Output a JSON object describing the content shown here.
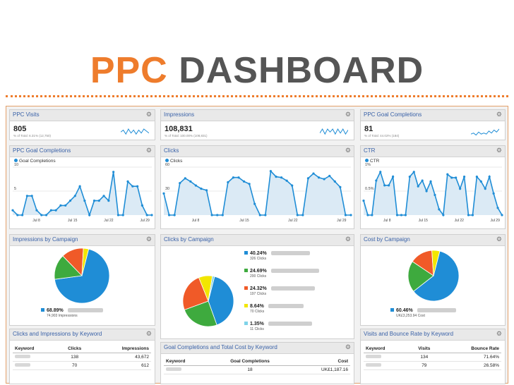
{
  "title": {
    "part1": "PPC",
    "part2": "DASHBOARD"
  },
  "colors": {
    "accent": "#ee7c2c",
    "line": "#1f8dd6",
    "area": "#dbeaf5",
    "title_gray": "#555555"
  },
  "widgets": {
    "ppc_visits": {
      "title": "PPC Visits",
      "value": "805",
      "sub": "% of Total: 6.31% (12,750)",
      "spark": [
        4,
        6,
        2,
        7,
        3,
        6,
        2,
        6,
        3,
        7,
        5,
        3
      ]
    },
    "impressions": {
      "title": "Impressions",
      "value": "108,831",
      "sub": "% of Total: 100.00% (108,831)",
      "spark": [
        3,
        7,
        2,
        7,
        4,
        7,
        2,
        7,
        3,
        7,
        2,
        6
      ]
    },
    "ppc_goal_completions": {
      "title": "PPC Goal Completions",
      "value": "81",
      "sub": "% of Total: 44.02% (184)",
      "spark": [
        2,
        3,
        1,
        4,
        2,
        3,
        2,
        5,
        3,
        6,
        4,
        7
      ]
    }
  },
  "chart_data": [
    {
      "type": "area",
      "title": "PPC Goal Completions",
      "legend": "Goal Completions",
      "yticks": [
        "10",
        "5"
      ],
      "ylim": [
        0,
        10
      ],
      "xticks": [
        "Jul 8",
        "Jul 15",
        "Jul 22",
        "Jul 29"
      ],
      "values": [
        1,
        0,
        0,
        4,
        4,
        1,
        0,
        0,
        1,
        1,
        2,
        2,
        3,
        4,
        6,
        3,
        0,
        3,
        3,
        4,
        3,
        9,
        0,
        0,
        7,
        6,
        6,
        2,
        0,
        0
      ]
    },
    {
      "type": "area",
      "title": "Clicks",
      "legend": "Clicks",
      "yticks": [
        "60",
        "30"
      ],
      "ylim": [
        0,
        60
      ],
      "xticks": [
        "Jul 8",
        "Jul 15",
        "Jul 22",
        "Jul 29"
      ],
      "values": [
        27,
        0,
        0,
        40,
        46,
        42,
        37,
        33,
        31,
        0,
        0,
        0,
        41,
        47,
        47,
        42,
        39,
        14,
        0,
        0,
        55,
        48,
        47,
        43,
        37,
        0,
        0,
        46,
        52,
        47,
        45,
        49,
        42,
        35,
        0,
        0
      ]
    },
    {
      "type": "area",
      "title": "CTR",
      "legend": "CTR",
      "yticks": [
        "1%",
        "0.5%"
      ],
      "ylim": [
        0,
        1
      ],
      "xticks": [
        "Jul 8",
        "Jul 15",
        "Jul 22",
        "Jul 29"
      ],
      "values": [
        0.3,
        0,
        0,
        0.72,
        0.9,
        0.62,
        0.62,
        0.8,
        0,
        0,
        0,
        0.8,
        0.9,
        0.6,
        0.72,
        0.5,
        0.7,
        0.42,
        0.12,
        0,
        0.85,
        0.78,
        0.78,
        0.55,
        0.8,
        0,
        0,
        0.8,
        0.7,
        0.55,
        0.8,
        0.45,
        0.15,
        0
      ]
    },
    {
      "type": "pie",
      "title": "Impressions by Campaign",
      "slices": [
        {
          "pct": 68.89,
          "color": "#1f8dd6"
        },
        {
          "pct": 14.9,
          "color": "#3eaa3e"
        },
        {
          "pct": 13.1,
          "color": "#f05a28"
        },
        {
          "pct": 3.11,
          "color": "#f2e600"
        }
      ],
      "legend": [
        {
          "label": "68.89%",
          "sub": "74,903 Impressions",
          "color": "#1f8dd6"
        }
      ]
    },
    {
      "type": "pie",
      "title": "Clicks by Campaign",
      "slices": [
        {
          "pct": 40.24,
          "color": "#1f8dd6"
        },
        {
          "pct": 24.69,
          "color": "#3eaa3e"
        },
        {
          "pct": 24.32,
          "color": "#f05a28"
        },
        {
          "pct": 8.64,
          "color": "#f2e600"
        },
        {
          "pct": 1.35,
          "color": "#7fd3e9"
        }
      ],
      "legend": [
        {
          "label": "40.24%",
          "sub": "326 Clicks",
          "color": "#1f8dd6"
        },
        {
          "label": "24.69%",
          "sub": "200 Clicks",
          "color": "#3eaa3e"
        },
        {
          "label": "24.32%",
          "sub": "197 Clicks",
          "color": "#f05a28"
        },
        {
          "label": "8.64%",
          "sub": "70 Clicks",
          "color": "#f2e600"
        },
        {
          "label": "1.35%",
          "sub": "11 Clicks",
          "color": "#7fd3e9"
        }
      ]
    },
    {
      "type": "pie",
      "title": "Cost by Campaign",
      "slices": [
        {
          "pct": 60.46,
          "color": "#1f8dd6"
        },
        {
          "pct": 20.0,
          "color": "#3eaa3e"
        },
        {
          "pct": 14.5,
          "color": "#f05a28"
        },
        {
          "pct": 5.04,
          "color": "#f2e600"
        }
      ],
      "legend": [
        {
          "label": "60.46%",
          "sub": "UK£3,253.94 Cost",
          "color": "#1f8dd6"
        }
      ]
    }
  ],
  "tables": {
    "clicks_impressions": {
      "title": "Clicks and Impressions by Keyword",
      "headers": [
        "Keyword",
        "Clicks",
        "Impressions"
      ],
      "rows": [
        [
          "",
          "138",
          "43,672"
        ],
        [
          "",
          "70",
          "612"
        ]
      ]
    },
    "goal_cost": {
      "title": "Goal Completions and Total Cost by Keyword",
      "headers": [
        "Keyword",
        "Goal Completions",
        "Cost"
      ],
      "rows": [
        [
          "",
          "18",
          "UK£1,187.16"
        ]
      ]
    },
    "visits_bounce": {
      "title": "Visits and Bounce Rate by Keyword",
      "headers": [
        "Keyword",
        "Visits",
        "Bounce Rate"
      ],
      "rows": [
        [
          "",
          "134",
          "71.64%"
        ],
        [
          "",
          "79",
          "26.58%"
        ]
      ]
    }
  }
}
